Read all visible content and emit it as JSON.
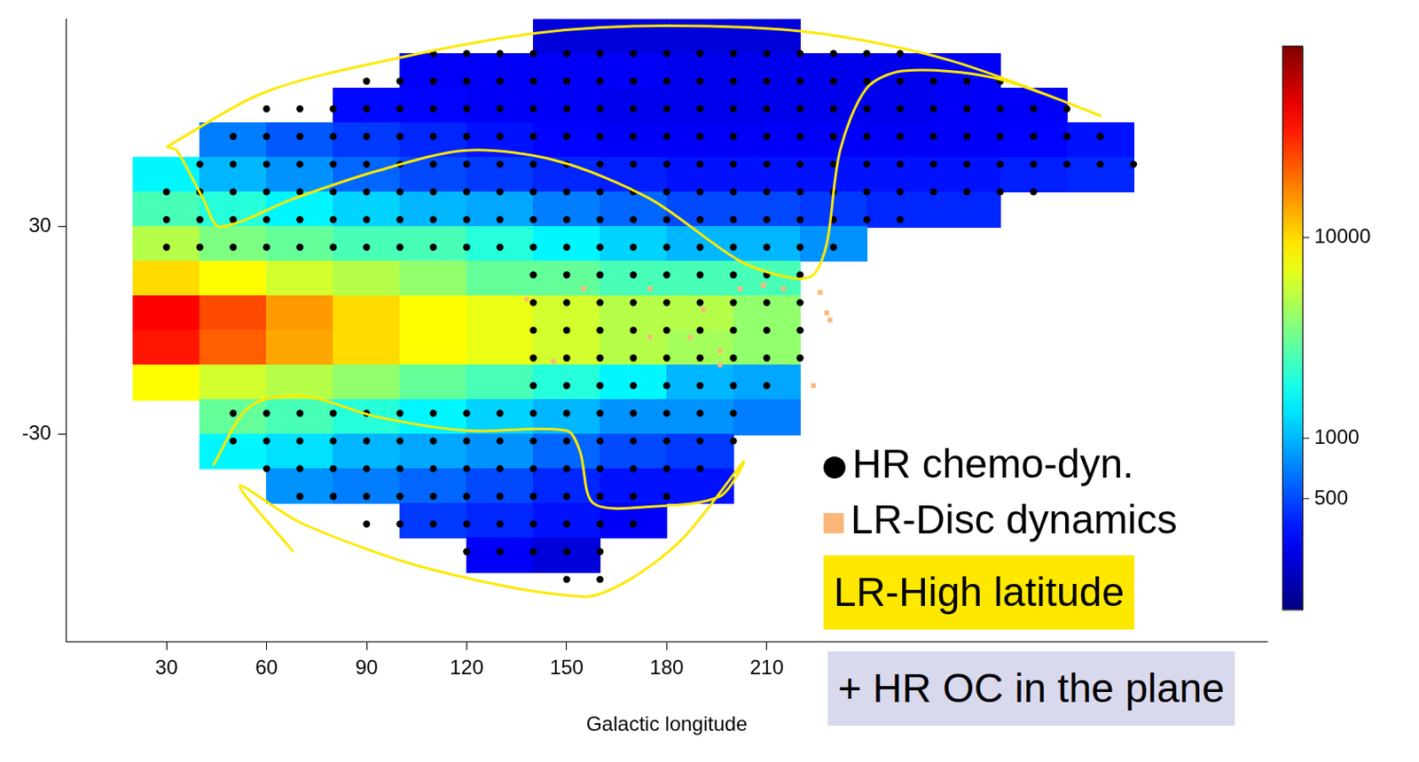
{
  "chart_data": {
    "type": "scatter",
    "x_label": "Galactic longitude",
    "xlim": [
      0,
      360
    ],
    "xticks": [
      30,
      60,
      90,
      120,
      150,
      180,
      210
    ],
    "ylim": [
      -90,
      90
    ],
    "yticks": [
      -30,
      30
    ],
    "grid": false,
    "legend": "lower right",
    "density": {
      "lon": [
        30,
        50,
        70,
        90,
        110,
        130,
        150,
        170,
        190,
        210,
        230,
        250,
        270,
        290,
        310,
        330
      ],
      "lat": [
        85,
        75,
        65,
        55,
        45,
        35,
        25,
        15,
        5,
        -5,
        -15,
        -25,
        -35,
        -45,
        -55,
        -65
      ],
      "values": [
        [
          null,
          null,
          null,
          null,
          null,
          null,
          250,
          250,
          250,
          250,
          null,
          null,
          null,
          null,
          null,
          null
        ],
        [
          null,
          null,
          null,
          null,
          300,
          300,
          300,
          300,
          280,
          280,
          280,
          280,
          300,
          null,
          null,
          null
        ],
        [
          null,
          null,
          null,
          330,
          320,
          300,
          300,
          280,
          280,
          280,
          280,
          280,
          300,
          300,
          null,
          null
        ],
        [
          null,
          700,
          550,
          450,
          400,
          350,
          320,
          300,
          300,
          300,
          300,
          300,
          300,
          320,
          350,
          null
        ],
        [
          1500,
          1000,
          800,
          600,
          500,
          450,
          400,
          380,
          350,
          350,
          350,
          350,
          350,
          380,
          400,
          null
        ],
        [
          2500,
          2000,
          1500,
          1200,
          1000,
          900,
          700,
          600,
          500,
          500,
          450,
          400,
          400,
          null,
          null,
          null
        ],
        [
          5000,
          3500,
          3000,
          2500,
          2500,
          2000,
          1500,
          1200,
          1000,
          1000,
          800,
          null,
          null,
          null,
          null,
          null
        ],
        [
          10000,
          8000,
          6000,
          5000,
          4000,
          3000,
          3000,
          2500,
          2500,
          2500,
          null,
          null,
          null,
          null,
          null,
          null
        ],
        [
          40000,
          25000,
          15000,
          10000,
          8000,
          7000,
          6000,
          5000,
          5000,
          4000,
          null,
          null,
          null,
          null,
          null,
          null
        ],
        [
          35000,
          22000,
          14000,
          10000,
          8000,
          7000,
          6000,
          5000,
          4500,
          4000,
          null,
          null,
          null,
          null,
          null,
          null
        ],
        [
          8000,
          6000,
          5000,
          4000,
          3000,
          2500,
          2000,
          1500,
          1000,
          900,
          null,
          null,
          null,
          null,
          null,
          null
        ],
        [
          null,
          3000,
          2500,
          2000,
          1500,
          1200,
          1000,
          800,
          800,
          700,
          null,
          null,
          null,
          null,
          null,
          null
        ],
        [
          null,
          1500,
          1300,
          1000,
          900,
          800,
          600,
          500,
          450,
          null,
          null,
          null,
          null,
          null,
          null,
          null
        ],
        [
          null,
          null,
          800,
          700,
          600,
          500,
          400,
          350,
          350,
          null,
          null,
          null,
          null,
          null,
          null,
          null
        ],
        [
          null,
          null,
          null,
          null,
          450,
          400,
          350,
          300,
          null,
          null,
          null,
          null,
          null,
          null,
          null,
          null
        ],
        [
          null,
          null,
          null,
          null,
          null,
          300,
          250,
          null,
          null,
          null,
          null,
          null,
          null,
          null,
          null,
          null
        ]
      ]
    },
    "colorbar": {
      "range": [
        140,
        90000
      ],
      "ticks": [
        500,
        1000,
        10000
      ],
      "log": true
    },
    "series": [
      {
        "name": "HR chemo-dyn.",
        "type": "scatter",
        "color": "#000000",
        "marker": "circle",
        "rows": [
          {
            "lat": 80,
            "lon": [
              110,
              120,
              130,
              140,
              150,
              160,
              170,
              180,
              190,
              200,
              210,
              220,
              230,
              240,
              250
            ]
          },
          {
            "lat": 72,
            "lon": [
              90,
              100,
              110,
              120,
              130,
              140,
              150,
              160,
              170,
              180,
              190,
              200,
              210,
              220,
              230,
              240,
              250,
              260,
              270,
              280
            ]
          },
          {
            "lat": 64,
            "lon": [
              60,
              70,
              80,
              90,
              100,
              110,
              120,
              130,
              140,
              150,
              160,
              170,
              180,
              190,
              200,
              210,
              220,
              230,
              240,
              250,
              260,
              270,
              280,
              290,
              300
            ]
          },
          {
            "lat": 56,
            "lon": [
              50,
              60,
              70,
              80,
              90,
              100,
              110,
              120,
              130,
              140,
              150,
              160,
              170,
              180,
              190,
              200,
              210,
              220,
              230,
              240,
              250,
              260,
              270,
              280,
              290,
              300,
              310
            ]
          },
          {
            "lat": 48,
            "lon": [
              40,
              50,
              60,
              70,
              80,
              90,
              100,
              110,
              120,
              130,
              140,
              150,
              160,
              170,
              180,
              190,
              200,
              210,
              220,
              230,
              240,
              250,
              260,
              270,
              280,
              290,
              300,
              310,
              320
            ]
          },
          {
            "lat": 40,
            "lon": [
              30,
              40,
              50,
              60,
              70,
              80,
              90,
              100,
              110,
              120,
              130,
              140,
              150,
              160,
              170,
              180,
              190,
              200,
              210,
              220,
              230,
              240,
              250,
              260,
              270,
              280,
              290
            ]
          },
          {
            "lat": 32,
            "lon": [
              30,
              40,
              50,
              60,
              70,
              80,
              90,
              100,
              110,
              120,
              130,
              140,
              150,
              160,
              170,
              180,
              190,
              200,
              210,
              220,
              230,
              240,
              250
            ]
          },
          {
            "lat": 24,
            "lon": [
              30,
              40,
              50,
              60,
              70,
              80,
              90,
              100,
              110,
              120,
              130,
              140,
              150,
              160,
              170,
              180,
              190,
              200,
              210,
              220,
              230
            ]
          },
          {
            "lat": 16,
            "lon": [
              140,
              150,
              160,
              170,
              180,
              190,
              200,
              210,
              220
            ]
          },
          {
            "lat": 8,
            "lon": [
              140,
              150,
              160,
              170,
              180,
              190,
              200,
              210,
              220
            ]
          },
          {
            "lat": 0,
            "lon": [
              140,
              150,
              160,
              170,
              180,
              190,
              200,
              210,
              220
            ]
          },
          {
            "lat": -8,
            "lon": [
              140,
              150,
              160,
              170,
              180,
              190,
              200,
              210,
              220
            ]
          },
          {
            "lat": -16,
            "lon": [
              140,
              150,
              160,
              170,
              180,
              190,
              200,
              210
            ]
          },
          {
            "lat": -24,
            "lon": [
              50,
              60,
              70,
              80,
              90,
              100,
              110,
              120,
              130,
              140,
              150,
              160,
              170,
              180,
              190,
              200
            ]
          },
          {
            "lat": -32,
            "lon": [
              50,
              60,
              70,
              80,
              90,
              100,
              110,
              120,
              130,
              140,
              150,
              160,
              170,
              180,
              190,
              200
            ]
          },
          {
            "lat": -40,
            "lon": [
              60,
              70,
              80,
              90,
              100,
              110,
              120,
              130,
              140,
              150,
              160,
              170,
              180,
              190
            ]
          },
          {
            "lat": -48,
            "lon": [
              70,
              80,
              90,
              100,
              110,
              120,
              130,
              140,
              150,
              160,
              170,
              180
            ]
          },
          {
            "lat": -56,
            "lon": [
              90,
              100,
              110,
              120,
              130,
              140,
              150,
              160,
              170
            ]
          },
          {
            "lat": -64,
            "lon": [
              120,
              130,
              140,
              150,
              160
            ]
          },
          {
            "lat": -72,
            "lon": [
              150,
              160
            ]
          }
        ]
      },
      {
        "name": "LR-Disc dynamics",
        "type": "scatter",
        "color": "#fbb77a",
        "marker": "square",
        "x": [
          138,
          175,
          191,
          202,
          215,
          226,
          228,
          229,
          175,
          187,
          196,
          196,
          146,
          224,
          155,
          209
        ],
        "y": [
          9,
          12,
          6,
          12,
          12,
          11,
          5,
          3,
          -2,
          -2,
          -6,
          -10,
          -9,
          -16,
          12,
          13
        ]
      },
      {
        "name": "LR-High latitude",
        "type": "line",
        "color": "#ffe800",
        "line_style": "solid",
        "lines": [
          {
            "x": [
              30,
              60,
              101,
              142,
              180,
              224,
              265,
              310,
              278,
              251,
              240,
              232,
              228,
              224,
              218,
              202,
              175,
              147,
              120,
              93,
              68,
              46,
              41,
              33,
              30
            ],
            "y": [
              53,
              69,
              79,
              86,
              88,
              86,
              78,
              62,
              73,
              75,
              70,
              52,
              25,
              16,
              15,
              20,
              38,
              49,
              52,
              46,
              38,
              30,
              38,
              52,
              53
            ]
          },
          {
            "x": [
              44,
              55,
              71,
              93,
              120,
              150,
              154,
              158,
              175,
              196,
              203,
              185,
              169,
              155,
              109,
              71,
              52,
              68
            ],
            "y": [
              -39,
              -22,
              -19,
              -25,
              -29,
              -29,
              -35,
              -50,
              -51,
              -48,
              -38,
              -60,
              -72,
              -77,
              -69,
              -56,
              -45,
              -64
            ]
          }
        ]
      }
    ],
    "annotations": [
      "+ HR OC in the plane"
    ]
  }
}
